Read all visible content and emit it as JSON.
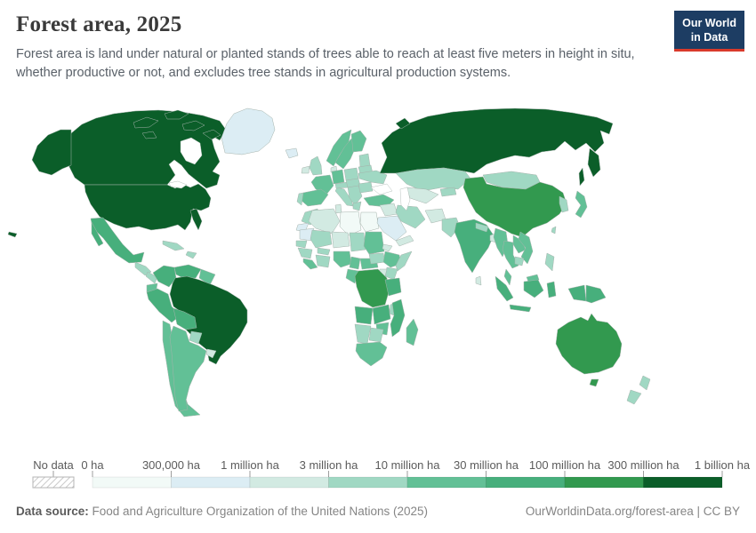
{
  "header": {
    "title": "Forest area, 2025",
    "subtitle": "Forest area is land under natural or planted stands of trees able to reach at least five meters in height in situ, whether productive or not, and excludes tree stands in agricultural production systems.",
    "logo": {
      "line1": "Our World",
      "line2": "in Data",
      "bg": "#1d3d63",
      "accent": "#d93a2b"
    }
  },
  "legend": {
    "no_data_label": "No data",
    "tick_labels": [
      "0 ha",
      "300,000 ha",
      "1 million ha",
      "3 million ha",
      "10 million ha",
      "30 million ha",
      "100 million ha",
      "300 million ha",
      "1 billion ha"
    ]
  },
  "footer": {
    "source_label": "Data source:",
    "source_text": " Food and Agriculture Organization of the United Nations (2025)",
    "credit": "OurWorldinData.org/forest-area | CC BY"
  },
  "chart_data": {
    "type": "choropleth-map",
    "title": "Forest area, 2025",
    "unit": "ha",
    "legend_position": "bottom",
    "no_data": {
      "label": "No data",
      "pattern": "diagonal-hatch"
    },
    "bins": [
      {
        "label": "0 ha – 300,000 ha",
        "color": "#f2faf7"
      },
      {
        "label": "300,000 ha – 1 million ha",
        "color": "#dcedf4"
      },
      {
        "label": "1 million ha – 3 million ha",
        "color": "#d2eae2"
      },
      {
        "label": "3 million ha – 10 million ha",
        "color": "#a0d8c3"
      },
      {
        "label": "10 million ha – 30 million ha",
        "color": "#62c096"
      },
      {
        "label": "30 million ha – 100 million ha",
        "color": "#47af7c"
      },
      {
        "label": "100 million ha – 300 million ha",
        "color": "#32994f"
      },
      {
        "label": "300 million ha – 1 billion ha",
        "color": "#0b5e29"
      }
    ],
    "countries": [
      {
        "name": "Canada",
        "bin": 7
      },
      {
        "name": "United States",
        "bin": 7
      },
      {
        "name": "Greenland",
        "bin": 1
      },
      {
        "name": "Mexico",
        "bin": 5
      },
      {
        "name": "Guatemala",
        "bin": 3
      },
      {
        "name": "Nicaragua",
        "bin": 3
      },
      {
        "name": "Cuba",
        "bin": 3
      },
      {
        "name": "Dominican Republic",
        "bin": 3
      },
      {
        "name": "Colombia",
        "bin": 5
      },
      {
        "name": "Venezuela",
        "bin": 5
      },
      {
        "name": "Guyana",
        "bin": 4
      },
      {
        "name": "Ecuador",
        "bin": 4
      },
      {
        "name": "Peru",
        "bin": 5
      },
      {
        "name": "Brazil",
        "bin": 7
      },
      {
        "name": "Bolivia",
        "bin": 5
      },
      {
        "name": "Paraguay",
        "bin": 3
      },
      {
        "name": "Uruguay",
        "bin": 2
      },
      {
        "name": "Chile",
        "bin": 4
      },
      {
        "name": "Argentina",
        "bin": 4
      },
      {
        "name": "Iceland",
        "bin": 1
      },
      {
        "name": "Ireland",
        "bin": 2
      },
      {
        "name": "United Kingdom",
        "bin": 3
      },
      {
        "name": "Norway",
        "bin": 4
      },
      {
        "name": "Sweden",
        "bin": 4
      },
      {
        "name": "Finland",
        "bin": 4
      },
      {
        "name": "Denmark",
        "bin": 2
      },
      {
        "name": "Latvia",
        "bin": 3
      },
      {
        "name": "Belarus",
        "bin": 3
      },
      {
        "name": "Poland",
        "bin": 3
      },
      {
        "name": "Germany",
        "bin": 4
      },
      {
        "name": "France",
        "bin": 4
      },
      {
        "name": "Spain",
        "bin": 4
      },
      {
        "name": "Portugal",
        "bin": 3
      },
      {
        "name": "Italy",
        "bin": 3
      },
      {
        "name": "Austria",
        "bin": 3
      },
      {
        "name": "Czechia",
        "bin": 3
      },
      {
        "name": "Serbia",
        "bin": 3
      },
      {
        "name": "Greece",
        "bin": 3
      },
      {
        "name": "Romania",
        "bin": 3
      },
      {
        "name": "Ukraine",
        "bin": 3
      },
      {
        "name": "Turkey",
        "bin": 4
      },
      {
        "name": "Morocco",
        "bin": 3
      },
      {
        "name": "Western Sahara",
        "bin": 1
      },
      {
        "name": "Algeria",
        "bin": 2
      },
      {
        "name": "Tunisia",
        "bin": 2
      },
      {
        "name": "Libya",
        "bin": 0
      },
      {
        "name": "Egypt",
        "bin": 0
      },
      {
        "name": "Mauritania",
        "bin": 1
      },
      {
        "name": "Mali",
        "bin": 3
      },
      {
        "name": "Niger",
        "bin": 2
      },
      {
        "name": "Chad",
        "bin": 3
      },
      {
        "name": "Sudan",
        "bin": 4
      },
      {
        "name": "Eritrea",
        "bin": 2
      },
      {
        "name": "Senegal",
        "bin": 3
      },
      {
        "name": "Guinea",
        "bin": 3
      },
      {
        "name": "Liberia",
        "bin": 4
      },
      {
        "name": "Ghana",
        "bin": 3
      },
      {
        "name": "Burkina Faso",
        "bin": 3
      },
      {
        "name": "Nigeria",
        "bin": 4
      },
      {
        "name": "Cameroon",
        "bin": 4
      },
      {
        "name": "Central African Republic",
        "bin": 4
      },
      {
        "name": "South Sudan",
        "bin": 3
      },
      {
        "name": "Ethiopia",
        "bin": 4
      },
      {
        "name": "Somalia",
        "bin": 3
      },
      {
        "name": "Kenya",
        "bin": 3
      },
      {
        "name": "Uganda",
        "bin": 2
      },
      {
        "name": "Gabon",
        "bin": 4
      },
      {
        "name": "DR Congo",
        "bin": 6
      },
      {
        "name": "Tanzania",
        "bin": 5
      },
      {
        "name": "Angola",
        "bin": 5
      },
      {
        "name": "Zambia",
        "bin": 5
      },
      {
        "name": "Malawi",
        "bin": 3
      },
      {
        "name": "Mozambique",
        "bin": 5
      },
      {
        "name": "Zimbabwe",
        "bin": 4
      },
      {
        "name": "Namibia",
        "bin": 3
      },
      {
        "name": "Botswana",
        "bin": 3
      },
      {
        "name": "South Africa",
        "bin": 4
      },
      {
        "name": "Madagascar",
        "bin": 4
      },
      {
        "name": "Iraq",
        "bin": 2
      },
      {
        "name": "Saudi Arabia",
        "bin": 1
      },
      {
        "name": "Yemen",
        "bin": 2
      },
      {
        "name": "Iran",
        "bin": 3
      },
      {
        "name": "Afghanistan",
        "bin": 2
      },
      {
        "name": "Pakistan",
        "bin": 3
      },
      {
        "name": "Russia",
        "bin": 7
      },
      {
        "name": "Kazakhstan",
        "bin": 3
      },
      {
        "name": "Uzbekistan",
        "bin": 2
      },
      {
        "name": "Kyrgyzstan",
        "bin": 3
      },
      {
        "name": "Mongolia",
        "bin": 3
      },
      {
        "name": "China",
        "bin": 6
      },
      {
        "name": "South Korea",
        "bin": 3
      },
      {
        "name": "Japan",
        "bin": 4
      },
      {
        "name": "Taiwan",
        "bin": 3
      },
      {
        "name": "India",
        "bin": 5
      },
      {
        "name": "Nepal",
        "bin": 3
      },
      {
        "name": "Sri Lanka",
        "bin": 2
      },
      {
        "name": "Bangladesh",
        "bin": 2
      },
      {
        "name": "Myanmar",
        "bin": 4
      },
      {
        "name": "Thailand",
        "bin": 4
      },
      {
        "name": "Laos",
        "bin": 4
      },
      {
        "name": "Vietnam",
        "bin": 4
      },
      {
        "name": "Cambodia",
        "bin": 3
      },
      {
        "name": "Malaysia",
        "bin": 4
      },
      {
        "name": "Indonesia",
        "bin": 5
      },
      {
        "name": "Philippines",
        "bin": 3
      },
      {
        "name": "Papua New Guinea",
        "bin": 5
      },
      {
        "name": "Australia",
        "bin": 6
      },
      {
        "name": "New Zealand",
        "bin": 3
      }
    ]
  }
}
